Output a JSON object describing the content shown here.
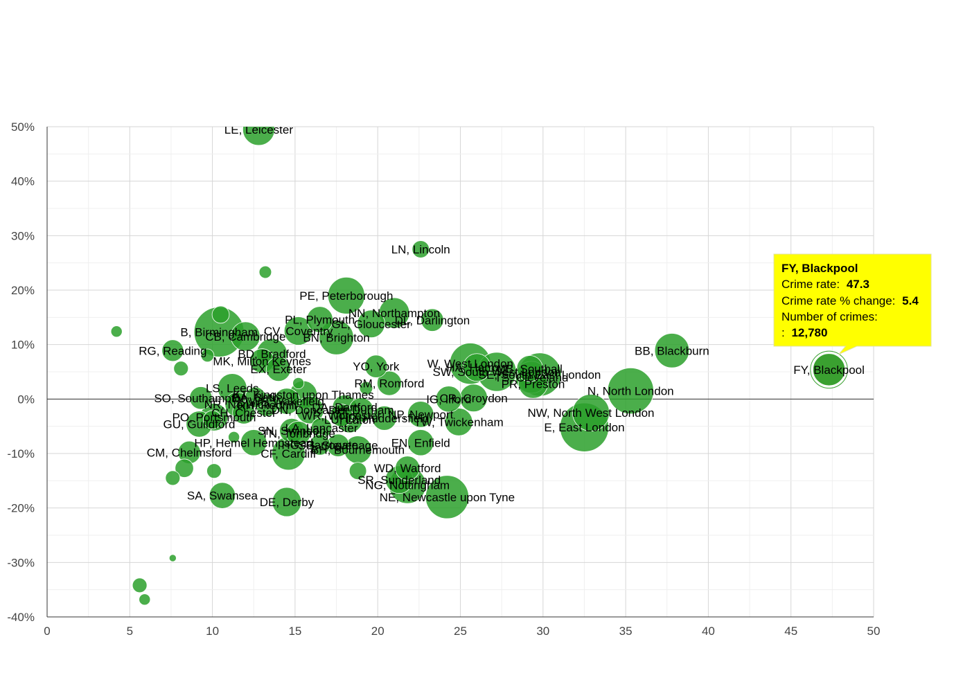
{
  "chart_data": {
    "type": "scatter",
    "title": "",
    "xlabel": "",
    "ylabel": "",
    "xlim": [
      0,
      50
    ],
    "ylim": [
      -40,
      50
    ],
    "x_ticks": [
      0,
      5,
      10,
      15,
      20,
      25,
      30,
      35,
      40,
      45,
      50
    ],
    "y_ticks": [
      50,
      40,
      30,
      20,
      10,
      0,
      -10,
      -20,
      -30,
      -40
    ],
    "x_tick_labels": [
      "0",
      "5",
      "10",
      "15",
      "20",
      "25",
      "30",
      "35",
      "40",
      "45",
      "50"
    ],
    "y_tick_labels": [
      "50%",
      "40%",
      "30%",
      "20%",
      "10%",
      "0%",
      "-10%",
      "-20%",
      "-30%",
      "-40%"
    ],
    "series_color": "#2ca02c",
    "highlight_color": "#3aa030",
    "labeled_points": [
      {
        "label": "LE, Leicester",
        "x": 12.8,
        "y": 49.5,
        "crimes": 12000
      },
      {
        "label": "LN, Lincoln",
        "x": 22.6,
        "y": 27.5,
        "crimes": 3500
      },
      {
        "label": "PE, Peterborough",
        "x": 18.1,
        "y": 19.0,
        "crimes": 16000
      },
      {
        "label": "NN, Northampton",
        "x": 21.0,
        "y": 15.8,
        "crimes": 11000
      },
      {
        "label": "DL, Darlington",
        "x": 23.3,
        "y": 14.5,
        "crimes": 6000
      },
      {
        "label": "PL, Plymouth",
        "x": 16.5,
        "y": 14.6,
        "crimes": 8000
      },
      {
        "label": "GL, Gloucester",
        "x": 19.6,
        "y": 13.8,
        "crimes": 9000
      },
      {
        "label": "CV, Coventry",
        "x": 15.2,
        "y": 12.5,
        "crimes": 9500
      },
      {
        "label": "B, Birmingham",
        "x": 10.4,
        "y": 12.3,
        "crimes": 30000
      },
      {
        "label": "CB, Cambridge",
        "x": 12.0,
        "y": 11.5,
        "crimes": 10000
      },
      {
        "label": "BN, Brighton",
        "x": 17.5,
        "y": 11.3,
        "crimes": 14000
      },
      {
        "label": "RG, Reading",
        "x": 7.6,
        "y": 8.9,
        "crimes": 5500
      },
      {
        "label": "BD, Bradford",
        "x": 13.6,
        "y": 8.3,
        "crimes": 11000
      },
      {
        "label": "MK, Milton Keynes",
        "x": 13.0,
        "y": 7.0,
        "crimes": 7000
      },
      {
        "label": "EX, Exeter",
        "x": 14.0,
        "y": 5.5,
        "crimes": 7000
      },
      {
        "label": "YO, York",
        "x": 19.9,
        "y": 6.0,
        "crimes": 6000
      },
      {
        "label": "W, West London",
        "x": 25.6,
        "y": 6.5,
        "crimes": 20000
      },
      {
        "label": "HA, Harrow",
        "x": 26.0,
        "y": 5.8,
        "crimes": 9000
      },
      {
        "label": "SW, South West London",
        "x": 27.2,
        "y": 5.0,
        "crimes": 18000
      },
      {
        "label": "UB, Southall",
        "x": 29.2,
        "y": 5.6,
        "crimes": 8000
      },
      {
        "label": "SE, South East London",
        "x": 29.8,
        "y": 4.5,
        "crimes": 22000
      },
      {
        "label": "TS, Cleveland",
        "x": 29.3,
        "y": 4.0,
        "crimes": 12000
      },
      {
        "label": "PR, Preston",
        "x": 29.4,
        "y": 2.8,
        "crimes": 10000
      },
      {
        "label": "RM, Romford",
        "x": 20.7,
        "y": 2.9,
        "crimes": 7000
      },
      {
        "label": "BB, Blackburn",
        "x": 37.8,
        "y": 8.9,
        "crimes": 14000
      },
      {
        "label": "N, North London",
        "x": 35.3,
        "y": 1.5,
        "crimes": 25000
      },
      {
        "label": "LS, Leeds",
        "x": 11.2,
        "y": 2.0,
        "crimes": 10000
      },
      {
        "label": "KT, Kingston upon Thames",
        "x": 15.5,
        "y": 0.8,
        "crimes": 9000
      },
      {
        "label": "BA, Bath",
        "x": 12.6,
        "y": 0.3,
        "crimes": 5000
      },
      {
        "label": "WF, Wakefield",
        "x": 14.5,
        "y": -0.4,
        "crimes": 8000
      },
      {
        "label": "SO, Southampton",
        "x": 9.3,
        "y": 0.2,
        "crimes": 6000
      },
      {
        "label": "NR, Norwich",
        "x": 11.5,
        "y": -1.0,
        "crimes": 7000
      },
      {
        "label": "RH, Redhill",
        "x": 13.3,
        "y": -1.1,
        "crimes": 6000
      },
      {
        "label": "IG, Ilford",
        "x": 24.3,
        "y": 0.0,
        "crimes": 8000
      },
      {
        "label": "CR, Croydon",
        "x": 25.8,
        "y": 0.2,
        "crimes": 9000
      },
      {
        "label": "NW, North West London",
        "x": 32.9,
        "y": -2.5,
        "crimes": 16000
      },
      {
        "label": "E, East London",
        "x": 32.5,
        "y": -5.2,
        "crimes": 28000
      },
      {
        "label": "CH, Chester",
        "x": 11.9,
        "y": -2.5,
        "crimes": 6000
      },
      {
        "label": "DN, Doncaster",
        "x": 15.9,
        "y": -2.0,
        "crimes": 9000
      },
      {
        "label": "DA, Dartford",
        "x": 18.0,
        "y": -1.5,
        "crimes": 7000
      },
      {
        "label": "DH, Durham",
        "x": 19.0,
        "y": -2.0,
        "crimes": 7000
      },
      {
        "label": "NP, Newport",
        "x": 22.6,
        "y": -2.8,
        "crimes": 8000
      },
      {
        "label": "PO, Portsmouth",
        "x": 10.1,
        "y": -3.3,
        "crimes": 9000
      },
      {
        "label": "WR, Worcester",
        "x": 17.8,
        "y": -3.0,
        "crimes": 6000
      },
      {
        "label": "LU, Luton",
        "x": 18.3,
        "y": -3.8,
        "crimes": 8000
      },
      {
        "label": "HD, Huddersfield",
        "x": 20.4,
        "y": -3.5,
        "crimes": 7000
      },
      {
        "label": "TW, Twickenham",
        "x": 24.9,
        "y": -4.2,
        "crimes": 9000
      },
      {
        "label": "GU, Guildford",
        "x": 9.2,
        "y": -4.6,
        "crimes": 8000
      },
      {
        "label": "LA, Lancaster",
        "x": 16.6,
        "y": -5.3,
        "crimes": 5000
      },
      {
        "label": "SN, Swindon",
        "x": 14.8,
        "y": -5.8,
        "crimes": 7000
      },
      {
        "label": "TN, Tonbridge",
        "x": 15.2,
        "y": -6.3,
        "crimes": 7000
      },
      {
        "label": "HP, Hemel Hempstead",
        "x": 12.5,
        "y": -8.0,
        "crimes": 8000
      },
      {
        "label": "HG, Harrogate",
        "x": 16.5,
        "y": -8.4,
        "crimes": 5000
      },
      {
        "label": "SG, Stevenage",
        "x": 17.6,
        "y": -8.5,
        "crimes": 6000
      },
      {
        "label": "EN, Enfield",
        "x": 22.6,
        "y": -8.0,
        "crimes": 8000
      },
      {
        "label": "BH, Bournemouth",
        "x": 18.8,
        "y": -9.3,
        "crimes": 9000
      },
      {
        "label": "CF, Cardiff",
        "x": 14.6,
        "y": -10.0,
        "crimes": 13000
      },
      {
        "label": "CM, Chelmsford",
        "x": 8.6,
        "y": -9.8,
        "crimes": 6000
      },
      {
        "label": "WD, Watford",
        "x": 21.8,
        "y": -12.7,
        "crimes": 7000
      },
      {
        "label": "SR, Sunderland",
        "x": 21.3,
        "y": -14.8,
        "crimes": 9000
      },
      {
        "label": "NG, Nottingham",
        "x": 21.8,
        "y": -15.8,
        "crimes": 16000
      },
      {
        "label": "NE, Newcastle upon Tyne",
        "x": 24.2,
        "y": -18.0,
        "crimes": 22000
      },
      {
        "label": "SA, Swansea",
        "x": 10.6,
        "y": -17.7,
        "crimes": 8000
      },
      {
        "label": "DE, Derby",
        "x": 14.5,
        "y": -18.9,
        "crimes": 10000
      },
      {
        "label": "FY, Blackpool",
        "x": 47.3,
        "y": 5.4,
        "crimes": 12780
      }
    ],
    "unlabeled_points": [
      {
        "x": 4.2,
        "y": 12.4,
        "crimes": 1500
      },
      {
        "x": 13.2,
        "y": 23.3,
        "crimes": 1800
      },
      {
        "x": 10.5,
        "y": 15.5,
        "crimes": 3500
      },
      {
        "x": 9.7,
        "y": 8.0,
        "crimes": 2000
      },
      {
        "x": 8.1,
        "y": 5.6,
        "crimes": 2500
      },
      {
        "x": 15.2,
        "y": 2.9,
        "crimes": 1500
      },
      {
        "x": 19.3,
        "y": 2.0,
        "crimes": 2000
      },
      {
        "x": 10.0,
        "y": -3.8,
        "crimes": 4000
      },
      {
        "x": 11.3,
        "y": -7.0,
        "crimes": 1500
      },
      {
        "x": 8.3,
        "y": -12.7,
        "crimes": 4000
      },
      {
        "x": 10.1,
        "y": -13.2,
        "crimes": 2500
      },
      {
        "x": 7.6,
        "y": -14.5,
        "crimes": 2500
      },
      {
        "x": 18.8,
        "y": -13.2,
        "crimes": 3500
      },
      {
        "x": 7.6,
        "y": -29.2,
        "crimes": 600
      },
      {
        "x": 5.6,
        "y": -34.2,
        "crimes": 2500
      },
      {
        "x": 5.9,
        "y": -36.8,
        "crimes": 1500
      }
    ],
    "tooltip": {
      "title": "FY, Blackpool",
      "rate_label": "Crime rate:",
      "rate_value": "47.3",
      "change_label": "Crime rate % change:",
      "change_value": "5.4",
      "count_label": "Number of crimes:",
      "count_prefix": ":",
      "count_value": "12,780",
      "background": "#ffff00"
    }
  }
}
